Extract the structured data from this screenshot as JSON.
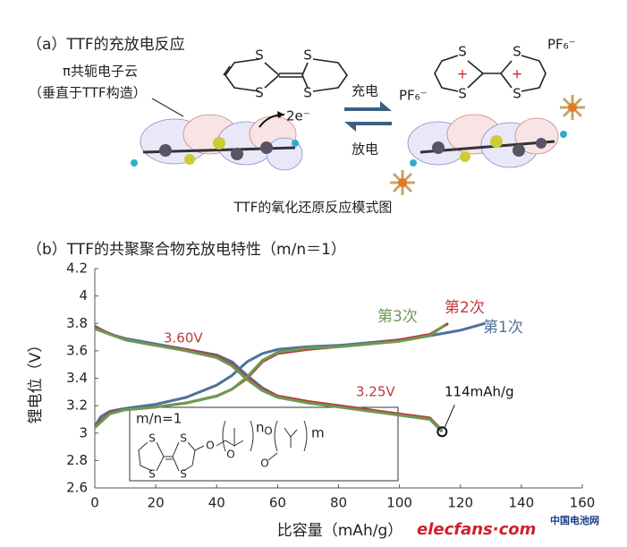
{
  "diagram": {
    "title": "（a）TTF的充放电反应",
    "cloud_label": "π共轭电子云",
    "cloud_note": "（垂直于TTF构造）",
    "electrons": "2e⁻",
    "charge": "充电",
    "discharge": "放电",
    "caption": "TTF的氧化还原反应模式图",
    "left_atoms": [
      "S",
      "S",
      "S",
      "S"
    ],
    "right_atoms": [
      "S",
      "S",
      "S",
      "S"
    ],
    "right_charges": [
      "+",
      "+"
    ],
    "anions": [
      "PF₆⁻",
      "PF₆⁻"
    ]
  },
  "chart_data": {
    "type": "line",
    "title": "（b）TTF的共聚聚合物充放电特性（m/n＝1）",
    "x_label": "比容量（mAh/g）",
    "y_label": "锂电位（V）",
    "xlim": [
      0,
      160
    ],
    "xticks": [
      0,
      20,
      40,
      60,
      80,
      100,
      120,
      140,
      160
    ],
    "ylim": [
      2.6,
      4.2
    ],
    "yticks": [
      2.6,
      2.8,
      3,
      3.2,
      3.4,
      3.6,
      3.8,
      4,
      4.2
    ],
    "series": [
      {
        "name": "第1次",
        "color": "#4f7299",
        "x": [
          0,
          2,
          5,
          10,
          20,
          30,
          40,
          45,
          50,
          55,
          60,
          70,
          80,
          90,
          100,
          110,
          120,
          128,
          null,
          0,
          5,
          10,
          20,
          30,
          40,
          45,
          50,
          55,
          60,
          70,
          80,
          90,
          100,
          110,
          114
        ],
        "values": [
          3.05,
          3.12,
          3.16,
          3.18,
          3.21,
          3.26,
          3.35,
          3.42,
          3.52,
          3.58,
          3.61,
          3.63,
          3.64,
          3.66,
          3.68,
          3.71,
          3.75,
          3.8,
          null,
          3.78,
          3.72,
          3.69,
          3.65,
          3.61,
          3.57,
          3.52,
          3.42,
          3.33,
          3.27,
          3.23,
          3.2,
          3.17,
          3.13,
          3.1,
          3.01
        ]
      },
      {
        "name": "第2次",
        "color": "#c0393b",
        "x": [
          0,
          5,
          10,
          20,
          30,
          40,
          45,
          50,
          55,
          60,
          70,
          80,
          90,
          100,
          110,
          116,
          null,
          0,
          10,
          20,
          30,
          40,
          45,
          50,
          55,
          60,
          70,
          80,
          90,
          100,
          110,
          114
        ],
        "values": [
          3.05,
          3.15,
          3.17,
          3.19,
          3.22,
          3.27,
          3.32,
          3.4,
          3.52,
          3.58,
          3.61,
          3.63,
          3.65,
          3.68,
          3.72,
          3.8,
          null,
          3.77,
          3.68,
          3.64,
          3.61,
          3.56,
          3.5,
          3.4,
          3.32,
          3.27,
          3.23,
          3.2,
          3.17,
          3.14,
          3.11,
          3.02
        ]
      },
      {
        "name": "第3次",
        "color": "#6c9a52",
        "x": [
          0,
          5,
          10,
          20,
          30,
          40,
          45,
          50,
          55,
          60,
          70,
          80,
          90,
          100,
          110,
          115,
          null,
          0,
          10,
          20,
          30,
          40,
          45,
          50,
          55,
          60,
          70,
          80,
          90,
          100,
          110,
          114
        ],
        "values": [
          3.04,
          3.14,
          3.17,
          3.19,
          3.22,
          3.27,
          3.32,
          3.41,
          3.53,
          3.59,
          3.62,
          3.63,
          3.65,
          3.67,
          3.71,
          3.79,
          null,
          3.76,
          3.68,
          3.64,
          3.6,
          3.55,
          3.49,
          3.39,
          3.31,
          3.26,
          3.22,
          3.19,
          3.16,
          3.13,
          3.1,
          3.02
        ]
      }
    ],
    "annotations": [
      "3.60V",
      "3.25V",
      "114mAh/g"
    ],
    "inset": {
      "ratio": "m/n=1",
      "atoms": [
        "S",
        "S",
        "S",
        "S",
        "O",
        "O",
        "O",
        "O"
      ],
      "indices": [
        "n",
        "m"
      ]
    }
  },
  "watermarks": [
    "elecfans·com",
    "中国电池网"
  ]
}
